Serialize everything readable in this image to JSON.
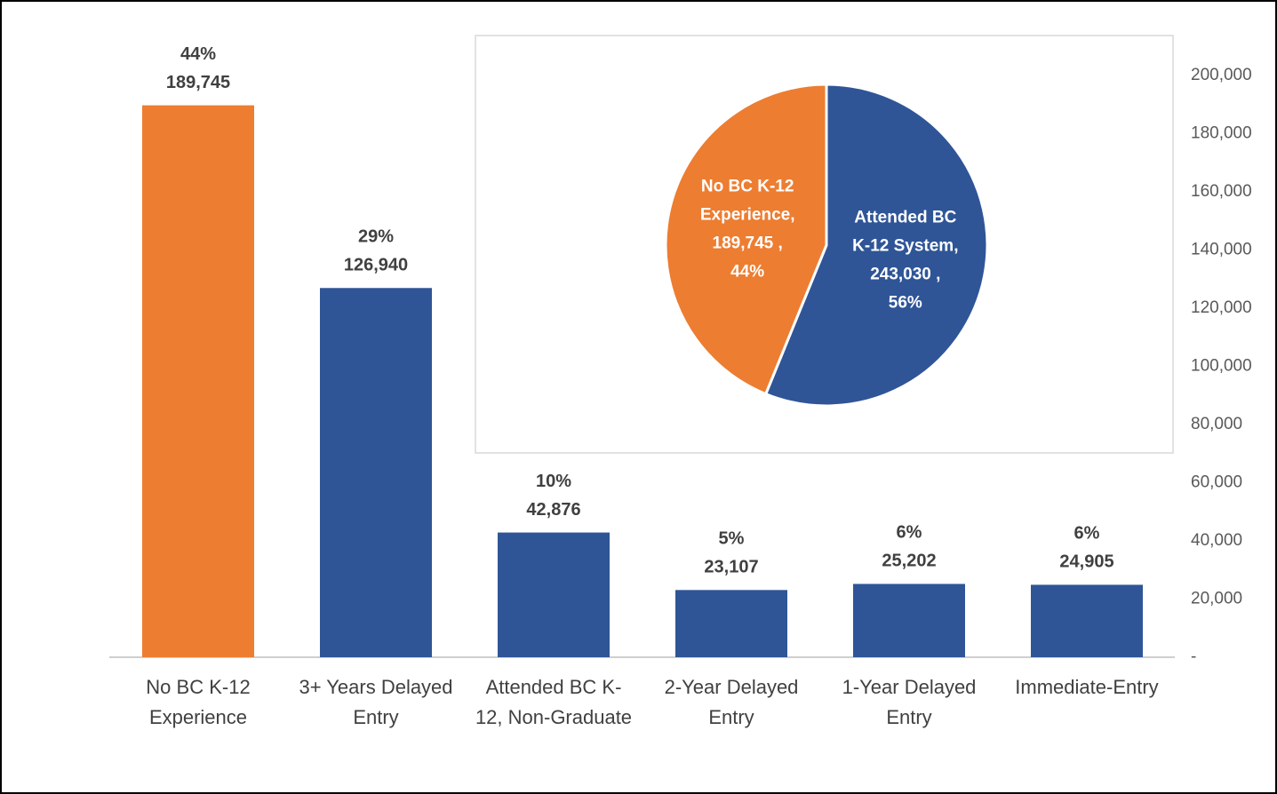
{
  "chart_data": [
    {
      "type": "bar",
      "categories": [
        "No BC K-12 Experience",
        "3+ Years Delayed Entry",
        "Attended BC K-12, Non-Graduate",
        "2-Year Delayed Entry",
        "1-Year Delayed Entry",
        "Immediate-Entry"
      ],
      "values": [
        189745,
        126940,
        42876,
        23107,
        25202,
        24905
      ],
      "value_labels": [
        "189,745",
        "126,940",
        "42,876",
        "23,107",
        "25,202",
        "24,905"
      ],
      "percents": [
        44,
        29,
        10,
        5,
        6,
        6
      ],
      "percent_labels": [
        "44%",
        "29%",
        "10%",
        "5%",
        "6%",
        "6%"
      ],
      "colors": [
        "#ED7D31",
        "#2F5597",
        "#2F5597",
        "#2F5597",
        "#2F5597",
        "#2F5597"
      ],
      "ylim": [
        0,
        200000
      ],
      "yticks": [
        {
          "value": 0,
          "label": "-"
        },
        {
          "value": 20000,
          "label": "20,000"
        },
        {
          "value": 40000,
          "label": "40,000"
        },
        {
          "value": 60000,
          "label": "60,000"
        },
        {
          "value": 80000,
          "label": "80,000"
        },
        {
          "value": 100000,
          "label": "100,000"
        },
        {
          "value": 120000,
          "label": "120,000"
        },
        {
          "value": 140000,
          "label": "140,000"
        },
        {
          "value": 160000,
          "label": "160,000"
        },
        {
          "value": 180000,
          "label": "180,000"
        },
        {
          "value": 200000,
          "label": "200,000"
        }
      ],
      "y_axis_side": "right",
      "grid": false
    },
    {
      "type": "pie",
      "categories": [
        "Attended BC K-12 System",
        "No BC K-12 Experience"
      ],
      "values": [
        243030,
        189745
      ],
      "value_labels": [
        "Attended BC K-12 System, 243,030 , 56%",
        "No BC K-12 Experience, 189,745 , 44%"
      ],
      "colors": [
        "#2F5597",
        "#ED7D31"
      ]
    }
  ]
}
